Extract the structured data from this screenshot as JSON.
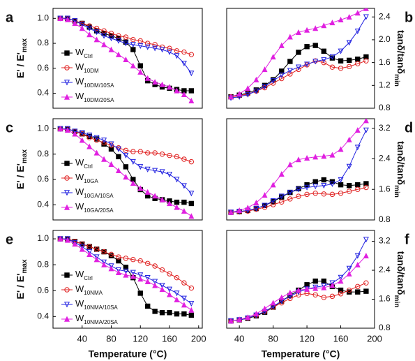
{
  "chart_data": [
    {
      "type": "line",
      "label": "a",
      "ylabel": "E' / E'",
      "ylabel_sub": "max",
      "xlim": [
        0,
        205
      ],
      "ylim": [
        0.28,
        1.08
      ],
      "yticks": [
        0.4,
        0.6,
        0.8,
        {
          "value": 1,
          "label": "1.0"
        }
      ],
      "x": [
        10,
        20,
        30,
        40,
        50,
        60,
        70,
        80,
        90,
        100,
        110,
        120,
        130,
        140,
        150,
        160,
        170,
        180,
        190
      ],
      "series": [
        {
          "name": "W",
          "subscript": "Ctrl",
          "color": "#000000",
          "marker": "square",
          "values": [
            1.0,
            1.0,
            0.98,
            0.96,
            0.93,
            0.9,
            0.88,
            0.86,
            0.84,
            0.81,
            0.75,
            0.62,
            0.5,
            0.47,
            0.45,
            0.44,
            0.43,
            0.42,
            0.42
          ]
        },
        {
          "name": "W",
          "subscript": "10DM",
          "color": "#e02020",
          "marker": "circle",
          "values": [
            1.0,
            1.0,
            0.98,
            0.96,
            0.94,
            0.92,
            0.9,
            0.88,
            0.86,
            0.85,
            0.83,
            0.82,
            0.8,
            0.79,
            0.77,
            0.76,
            0.74,
            0.73,
            0.71
          ]
        },
        {
          "name": "W",
          "subscript": "10DM/10SA",
          "color": "#2020e0",
          "marker": "down",
          "values": [
            1.0,
            1.0,
            0.98,
            0.95,
            0.92,
            0.89,
            0.86,
            0.84,
            0.82,
            0.8,
            0.79,
            0.78,
            0.77,
            0.76,
            0.75,
            0.73,
            0.7,
            0.64,
            0.56
          ]
        },
        {
          "name": "W",
          "subscript": "10DM/20SA",
          "color": "#e020e0",
          "marker": "up",
          "values": [
            1.0,
            0.99,
            0.96,
            0.92,
            0.87,
            0.83,
            0.79,
            0.75,
            0.71,
            0.67,
            0.62,
            0.57,
            0.52,
            0.49,
            0.47,
            0.45,
            0.42,
            0.39,
            0.34
          ]
        }
      ]
    },
    {
      "type": "line",
      "label": "b",
      "ylabel": "tanδ/tanδ",
      "ylabel_sub": "min",
      "xlim": [
        25,
        200
      ],
      "ylim": [
        0.8,
        2.55
      ],
      "yticks": [
        0.8,
        1.2,
        1.6,
        {
          "value": 2,
          "label": "2.0"
        },
        2.4
      ],
      "x": [
        30,
        40,
        50,
        60,
        70,
        80,
        90,
        100,
        110,
        120,
        130,
        140,
        150,
        160,
        170,
        180,
        190
      ],
      "series": [
        {
          "color": "#000000",
          "marker": "square",
          "values": [
            1.0,
            1.03,
            1.07,
            1.12,
            1.2,
            1.3,
            1.45,
            1.62,
            1.78,
            1.88,
            1.9,
            1.8,
            1.68,
            1.63,
            1.64,
            1.66,
            1.7
          ]
        },
        {
          "color": "#e02020",
          "marker": "circle",
          "values": [
            1.0,
            1.02,
            1.05,
            1.1,
            1.16,
            1.24,
            1.32,
            1.4,
            1.48,
            1.56,
            1.63,
            1.6,
            1.52,
            1.5,
            1.53,
            1.58,
            1.63
          ]
        },
        {
          "color": "#2020e0",
          "marker": "down",
          "values": [
            0.98,
            1.0,
            1.04,
            1.1,
            1.18,
            1.28,
            1.38,
            1.46,
            1.52,
            1.57,
            1.62,
            1.65,
            1.7,
            1.8,
            1.95,
            2.15,
            2.4
          ]
        },
        {
          "color": "#e020e0",
          "marker": "up",
          "values": [
            1.0,
            1.05,
            1.15,
            1.3,
            1.48,
            1.7,
            1.9,
            2.05,
            2.13,
            2.17,
            2.2,
            2.25,
            2.3,
            2.35,
            2.4,
            2.47,
            2.55
          ]
        }
      ]
    },
    {
      "type": "line",
      "label": "c",
      "ylabel": "E' / E'",
      "ylabel_sub": "max",
      "xlim": [
        0,
        205
      ],
      "ylim": [
        0.28,
        1.08
      ],
      "yticks": [
        0.4,
        0.6,
        0.8,
        {
          "value": 1,
          "label": "1.0"
        }
      ],
      "x": [
        10,
        20,
        30,
        40,
        50,
        60,
        70,
        80,
        90,
        100,
        110,
        120,
        130,
        140,
        150,
        160,
        170,
        180,
        190
      ],
      "series": [
        {
          "name": "W",
          "subscript": "Ctrl",
          "color": "#000000",
          "marker": "square",
          "values": [
            1.0,
            1.0,
            0.98,
            0.96,
            0.94,
            0.92,
            0.88,
            0.84,
            0.78,
            0.7,
            0.6,
            0.52,
            0.47,
            0.45,
            0.44,
            0.43,
            0.42,
            0.42,
            0.41
          ]
        },
        {
          "name": "W",
          "subscript": "10GA",
          "color": "#e02020",
          "marker": "circle",
          "values": [
            1.0,
            1.0,
            0.98,
            0.96,
            0.93,
            0.91,
            0.89,
            0.87,
            0.85,
            0.83,
            0.82,
            0.82,
            0.81,
            0.81,
            0.8,
            0.79,
            0.78,
            0.76,
            0.74
          ]
        },
        {
          "name": "W",
          "subscript": "10GA/10SA",
          "color": "#2020e0",
          "marker": "down",
          "values": [
            1.0,
            1.0,
            0.98,
            0.97,
            0.95,
            0.93,
            0.91,
            0.88,
            0.84,
            0.79,
            0.74,
            0.7,
            0.68,
            0.67,
            0.66,
            0.64,
            0.6,
            0.55,
            0.49
          ]
        },
        {
          "name": "W",
          "subscript": "10GA/20SA",
          "color": "#e020e0",
          "marker": "up",
          "values": [
            1.0,
            0.99,
            0.96,
            0.91,
            0.86,
            0.81,
            0.76,
            0.72,
            0.67,
            0.62,
            0.57,
            0.53,
            0.5,
            0.47,
            0.44,
            0.41,
            0.38,
            0.35,
            0.31
          ]
        }
      ]
    },
    {
      "type": "line",
      "label": "d",
      "ylabel": "tanδ/tanδ",
      "ylabel_sub": "min",
      "xlim": [
        25,
        200
      ],
      "ylim": [
        0.8,
        3.45
      ],
      "yticks": [
        0.8,
        1.6,
        2.4,
        3.2
      ],
      "x": [
        30,
        40,
        50,
        60,
        70,
        80,
        90,
        100,
        110,
        120,
        130,
        140,
        150,
        160,
        170,
        180,
        190
      ],
      "series": [
        {
          "color": "#000000",
          "marker": "square",
          "values": [
            1.0,
            1.02,
            1.05,
            1.1,
            1.18,
            1.28,
            1.4,
            1.52,
            1.62,
            1.72,
            1.8,
            1.85,
            1.8,
            1.72,
            1.7,
            1.72,
            1.75
          ]
        },
        {
          "color": "#e02020",
          "marker": "circle",
          "values": [
            1.0,
            1.01,
            1.03,
            1.08,
            1.13,
            1.2,
            1.27,
            1.35,
            1.42,
            1.47,
            1.5,
            1.48,
            1.47,
            1.5,
            1.55,
            1.6,
            1.65
          ]
        },
        {
          "color": "#2020e0",
          "marker": "down",
          "values": [
            1.0,
            1.02,
            1.05,
            1.1,
            1.18,
            1.3,
            1.42,
            1.52,
            1.6,
            1.65,
            1.68,
            1.7,
            1.74,
            1.85,
            2.2,
            2.7,
            3.15
          ]
        },
        {
          "color": "#e020e0",
          "marker": "up",
          "values": [
            1.0,
            1.05,
            1.12,
            1.25,
            1.45,
            1.72,
            2.0,
            2.25,
            2.38,
            2.42,
            2.45,
            2.47,
            2.5,
            2.65,
            2.9,
            3.15,
            3.4
          ]
        }
      ]
    },
    {
      "type": "line",
      "label": "e",
      "ylabel": "E' / E'",
      "ylabel_sub": "max",
      "xlabel": "Temperature (°C)",
      "xlim": [
        0,
        205
      ],
      "ylim": [
        0.31,
        1.065
      ],
      "xticks": [
        40,
        80,
        120,
        160,
        200
      ],
      "yticks": [
        0.4,
        0.6,
        0.8,
        {
          "value": 1,
          "label": "1.0"
        }
      ],
      "x": [
        10,
        20,
        30,
        40,
        50,
        60,
        70,
        80,
        90,
        100,
        110,
        120,
        130,
        140,
        150,
        160,
        170,
        180,
        190
      ],
      "series": [
        {
          "name": "W",
          "subscript": "Ctrl",
          "color": "#000000",
          "marker": "square",
          "values": [
            1.0,
            1.0,
            0.98,
            0.96,
            0.94,
            0.92,
            0.9,
            0.87,
            0.83,
            0.78,
            0.7,
            0.58,
            0.48,
            0.44,
            0.43,
            0.43,
            0.42,
            0.42,
            0.41
          ]
        },
        {
          "name": "W",
          "subscript": "10NMA",
          "color": "#e02020",
          "marker": "circle",
          "values": [
            1.0,
            1.0,
            0.98,
            0.96,
            0.94,
            0.92,
            0.9,
            0.88,
            0.86,
            0.85,
            0.84,
            0.83,
            0.81,
            0.79,
            0.76,
            0.73,
            0.7,
            0.66,
            0.62
          ]
        },
        {
          "name": "W",
          "subscript": "10NMA/10SA",
          "color": "#2020e0",
          "marker": "down",
          "values": [
            1.0,
            1.0,
            0.97,
            0.94,
            0.9,
            0.86,
            0.82,
            0.79,
            0.76,
            0.75,
            0.74,
            0.72,
            0.7,
            0.67,
            0.64,
            0.61,
            0.58,
            0.54,
            0.5
          ]
        },
        {
          "name": "W",
          "subscript": "10NMA/20SA",
          "color": "#e020e0",
          "marker": "up",
          "values": [
            1.0,
            0.99,
            0.96,
            0.92,
            0.88,
            0.84,
            0.8,
            0.77,
            0.74,
            0.72,
            0.71,
            0.69,
            0.67,
            0.64,
            0.61,
            0.57,
            0.53,
            0.49,
            0.45
          ]
        }
      ]
    },
    {
      "type": "line",
      "label": "f",
      "ylabel": "tanδ/tanδ",
      "ylabel_sub": "min",
      "xlabel": "Temperature (°C)",
      "xlim": [
        25,
        200
      ],
      "ylim": [
        0.8,
        3.5
      ],
      "xticks": [
        40,
        80,
        120,
        160,
        200
      ],
      "yticks": [
        0.8,
        1.6,
        2.4,
        3.2
      ],
      "x": [
        30,
        40,
        50,
        60,
        70,
        80,
        90,
        100,
        110,
        120,
        130,
        140,
        150,
        160,
        170,
        180,
        190
      ],
      "series": [
        {
          "color": "#000000",
          "marker": "square",
          "values": [
            1.0,
            1.03,
            1.07,
            1.14,
            1.24,
            1.38,
            1.55,
            1.7,
            1.85,
            2.0,
            2.1,
            2.1,
            1.95,
            1.85,
            1.8,
            1.8,
            1.82
          ]
        },
        {
          "color": "#e02020",
          "marker": "circle",
          "values": [
            1.0,
            1.03,
            1.08,
            1.16,
            1.26,
            1.38,
            1.5,
            1.62,
            1.72,
            1.76,
            1.72,
            1.65,
            1.68,
            1.75,
            1.85,
            1.95,
            2.05
          ]
        },
        {
          "color": "#2020e0",
          "marker": "down",
          "values": [
            1.0,
            1.03,
            1.08,
            1.16,
            1.26,
            1.4,
            1.55,
            1.68,
            1.8,
            1.88,
            1.93,
            1.97,
            2.05,
            2.2,
            2.45,
            2.8,
            3.25
          ]
        },
        {
          "color": "#e020e0",
          "marker": "up",
          "values": [
            1.0,
            1.04,
            1.1,
            1.2,
            1.34,
            1.5,
            1.65,
            1.78,
            1.85,
            1.88,
            1.9,
            1.92,
            1.98,
            2.1,
            2.3,
            2.55,
            2.8
          ]
        }
      ]
    }
  ]
}
